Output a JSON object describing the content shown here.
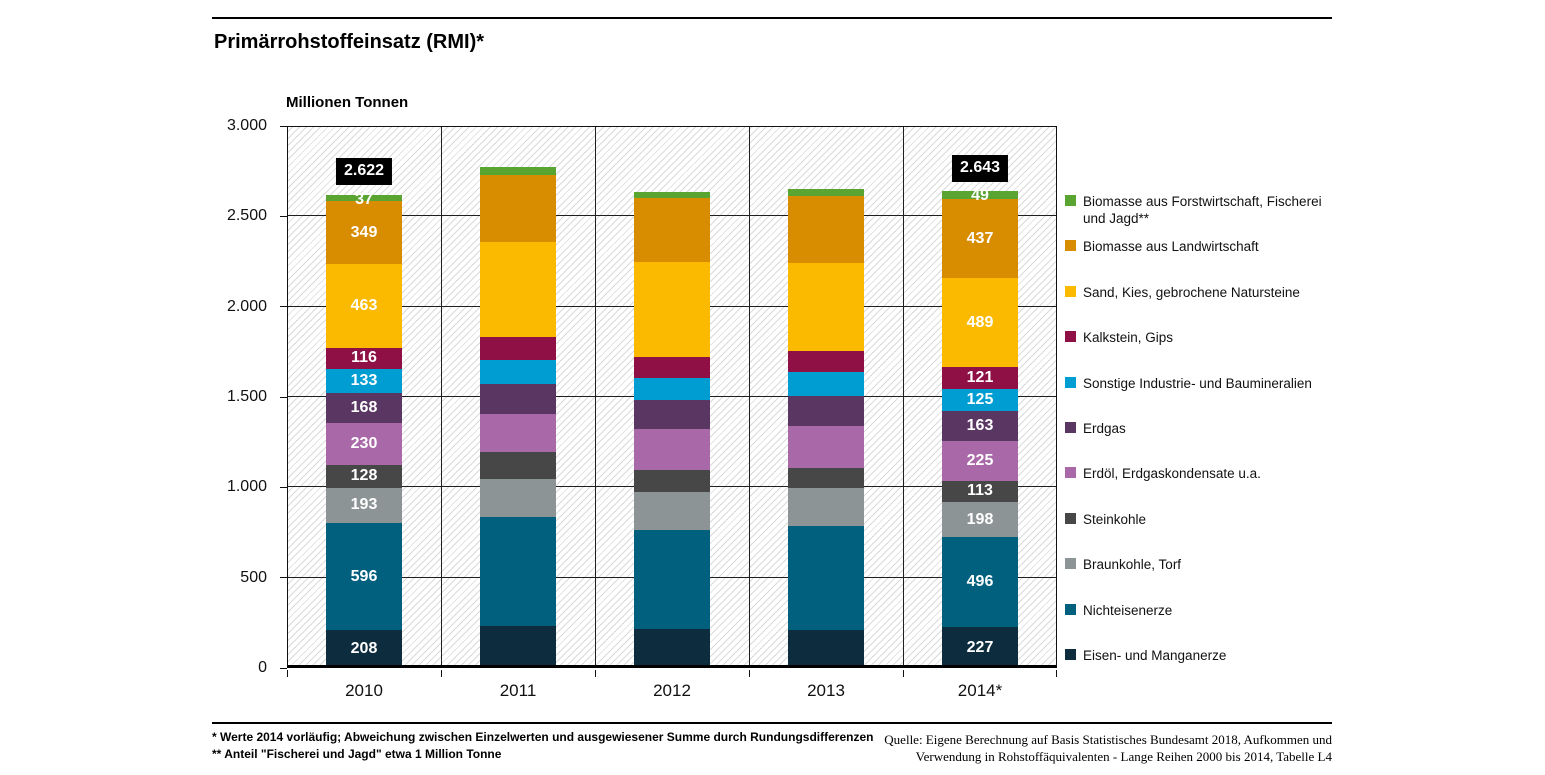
{
  "header": {
    "title": "Primärrohstoffeinsatz (RMI)*"
  },
  "chart_data": {
    "type": "bar",
    "stacked": true,
    "title": "Primärrohstoffeinsatz (RMI)*",
    "unit_label": "Millionen Tonnen",
    "categories": [
      "2010",
      "2011",
      "2012",
      "2013",
      "2014*"
    ],
    "ylim": [
      0,
      3000
    ],
    "ytick_step": 500,
    "ytick_labels": [
      "0",
      "500",
      "1.000",
      "1.500",
      "2.000",
      "2.500",
      "3.000"
    ],
    "grid": true,
    "legend_position": "right",
    "label_columns": [
      0,
      4
    ],
    "total_labels": [
      "2.622",
      null,
      null,
      null,
      "2.643"
    ],
    "series": [
      {
        "name": "Eisen- und Manganerze",
        "color": "#0d2c3d",
        "values": [
          208,
          235,
          217,
          211,
          227
        ]
      },
      {
        "name": "Nichteisenerze",
        "color": "#02607f",
        "values": [
          596,
          602,
          547,
          576,
          496
        ]
      },
      {
        "name": "Braunkohle, Torf",
        "color": "#8d9495",
        "values": [
          193,
          208,
          211,
          210,
          198
        ]
      },
      {
        "name": "Steinkohle",
        "color": "#474747",
        "values": [
          128,
          151,
          120,
          111,
          113
        ]
      },
      {
        "name": "Erdöl, Erdgaskondensate u.a.",
        "color": "#a968a8",
        "values": [
          230,
          212,
          227,
          232,
          225
        ]
      },
      {
        "name": "Erdgas",
        "color": "#5a3763",
        "values": [
          168,
          166,
          160,
          166,
          163
        ]
      },
      {
        "name": "Sonstige Industrie- und Baumineralien",
        "color": "#009dd3",
        "values": [
          133,
          129,
          123,
          132,
          125
        ]
      },
      {
        "name": "Kalkstein, Gips",
        "color": "#8e1045",
        "values": [
          116,
          129,
          116,
          115,
          121
        ]
      },
      {
        "name": "Sand, Kies, gebrochene Natursteine",
        "color": "#fbba00",
        "values": [
          463,
          525,
          529,
          489,
          489
        ]
      },
      {
        "name": "Biomasse aus Landwirtschaft",
        "color": "#d88c00",
        "values": [
          349,
          374,
          350,
          372,
          437
        ]
      },
      {
        "name": "Biomasse aus Forstwirtschaft, Fischerei und Jagd**",
        "color": "#5aa432",
        "values": [
          37,
          40,
          37,
          37,
          49
        ]
      }
    ]
  },
  "footnotes": {
    "line1": "* Werte 2014 vorläufig; Abweichung zwischen Einzelwerten und ausgewiesener Summe durch Rundungsdifferenzen",
    "line2": "** Anteil \"Fischerei und Jagd\" etwa 1 Million Tonne"
  },
  "source": {
    "line1": "Quelle: Eigene Berechnung auf Basis Statistisches Bundesamt 2018, Aufkommen und",
    "line2": "Verwendung in Rohstoffäquivalenten - Lange Reihen 2000 bis 2014, Tabelle L4"
  }
}
